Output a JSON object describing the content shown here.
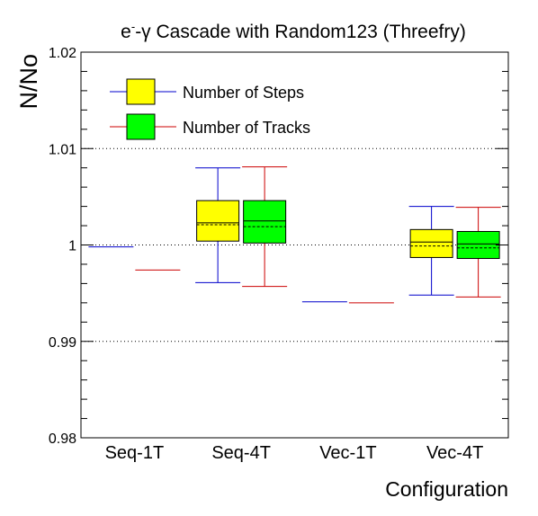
{
  "chart_data": {
    "type": "box",
    "title": "e-γ Cascade  with Random123 (Threefry)",
    "title_parts": {
      "base": "e",
      "sup": "-",
      "rest": "-γ Cascade  with Random123 (Threefry)"
    },
    "xlabel": "Configuration",
    "ylabel": "N/No",
    "ylim": [
      0.98,
      1.02
    ],
    "yticks": [
      "0.98",
      "0.99",
      "1",
      "1.01",
      "1.02"
    ],
    "ytick_values": [
      0.98,
      0.99,
      1.0,
      1.01,
      1.02
    ],
    "grid": {
      "y": [
        0.99,
        1.0,
        1.01
      ],
      "style": "dotted"
    },
    "categories": [
      "Seq-1T",
      "Seq-4T",
      "Vec-1T",
      "Vec-4T"
    ],
    "legend_position": "top-left",
    "series": [
      {
        "name": "Number of Steps",
        "fill": "#ffff00",
        "whisker_color": "#0000cc",
        "boxes": [
          {
            "min": 0.9998,
            "q1": 0.9998,
            "median": 0.9998,
            "q3": 0.9998,
            "max": 0.9998,
            "mean": 0.9998
          },
          {
            "min": 0.9961,
            "q1": 1.0004,
            "median": 1.0023,
            "q3": 1.0046,
            "max": 1.008,
            "mean": 1.0021
          },
          {
            "min": 0.9941,
            "q1": 0.9941,
            "median": 0.9941,
            "q3": 0.9941,
            "max": 0.9941,
            "mean": 0.9941
          },
          {
            "min": 0.9948,
            "q1": 0.9987,
            "median": 1.0003,
            "q3": 1.0016,
            "max": 1.004,
            "mean": 0.9999
          }
        ]
      },
      {
        "name": "Number of Tracks",
        "fill": "#00ff00",
        "whisker_color": "#cc0000",
        "boxes": [
          {
            "min": 0.9974,
            "q1": 0.9974,
            "median": 0.9974,
            "q3": 0.9974,
            "max": 0.9974,
            "mean": 0.9974
          },
          {
            "min": 0.9957,
            "q1": 1.0002,
            "median": 1.0025,
            "q3": 1.0046,
            "max": 1.0081,
            "mean": 1.0019
          },
          {
            "min": 0.994,
            "q1": 0.994,
            "median": 0.994,
            "q3": 0.994,
            "max": 0.994,
            "mean": 0.994
          },
          {
            "min": 0.9946,
            "q1": 0.9986,
            "median": 1.0001,
            "q3": 1.0014,
            "max": 1.0039,
            "mean": 0.9997
          }
        ]
      }
    ]
  }
}
